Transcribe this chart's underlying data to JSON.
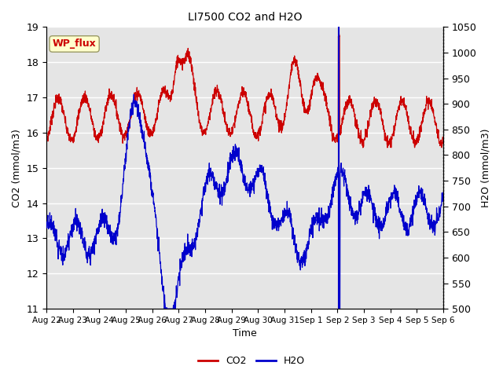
{
  "title": "LI7500 CO2 and H2O",
  "xlabel": "Time",
  "ylabel_left": "CO2 (mmol/m3)",
  "ylabel_right": "H2O (mmol/m3)",
  "ylim_left": [
    11.0,
    19.0
  ],
  "ylim_right": [
    500,
    1050
  ],
  "xtick_labels": [
    "Aug 22",
    "Aug 23",
    "Aug 24",
    "Aug 25",
    "Aug 26",
    "Aug 27",
    "Aug 28",
    "Aug 29",
    "Aug 30",
    "Aug 31",
    "Sep 1",
    "Sep 2",
    "Sep 3",
    "Sep 4",
    "Sep 5",
    "Sep 6"
  ],
  "co2_color": "#cc0000",
  "h2o_color": "#0000cc",
  "background_color": "#e5e5e5",
  "wp_flux_label": "WP_flux",
  "wp_flux_bg": "#ffffcc",
  "wp_flux_border": "#999966",
  "wp_flux_text_color": "#cc0000",
  "legend_co2": "CO2",
  "legend_h2o": "H2O",
  "n_points": 2000,
  "days": 15,
  "vline_x": 11.05,
  "grid_color": "#ffffff",
  "figsize": [
    6.4,
    4.8
  ],
  "dpi": 100
}
